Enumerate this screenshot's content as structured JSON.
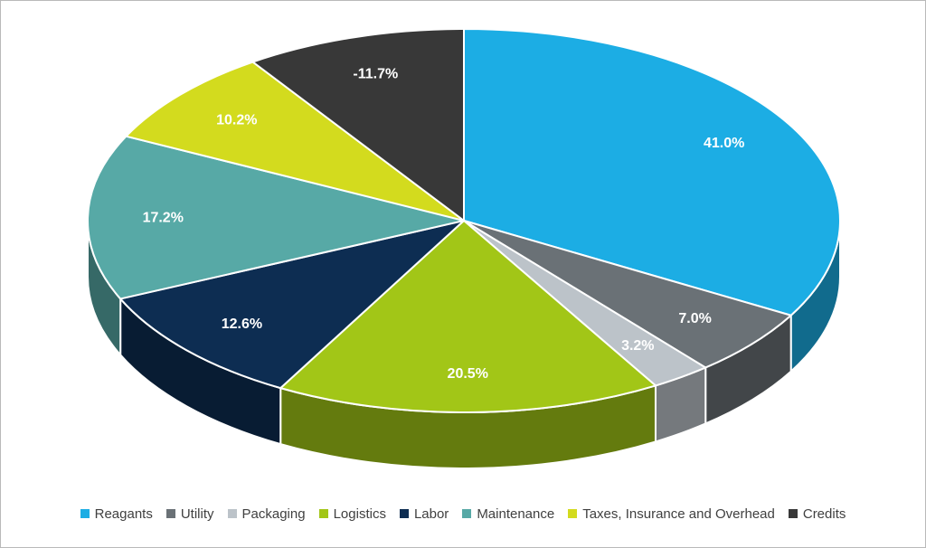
{
  "chart_data": {
    "type": "pie",
    "style": "3d",
    "title": "",
    "categories": [
      "Reagants",
      "Utility",
      "Packaging",
      "Logistics",
      "Labor",
      "Maintenance",
      "Taxes, Insurance and Overhead",
      "Credits"
    ],
    "values": [
      41.0,
      7.0,
      3.2,
      20.5,
      12.6,
      17.2,
      10.2,
      -11.7
    ],
    "labels": [
      "41.0%",
      "7.0%",
      "3.2%",
      "20.5%",
      "12.6%",
      "17.2%",
      "10.2%",
      "-11.7%"
    ],
    "colors": [
      "#1CADE4",
      "#6A7176",
      "#BCC3C9",
      "#A2C617",
      "#0D2D52",
      "#57A9A6",
      "#D3DB1E",
      "#383838"
    ],
    "start_angle_deg": 0,
    "direction": "clockwise",
    "legend_position": "bottom",
    "label_color": "#FFFFFF",
    "slice_border_color": "#FFFFFF"
  }
}
